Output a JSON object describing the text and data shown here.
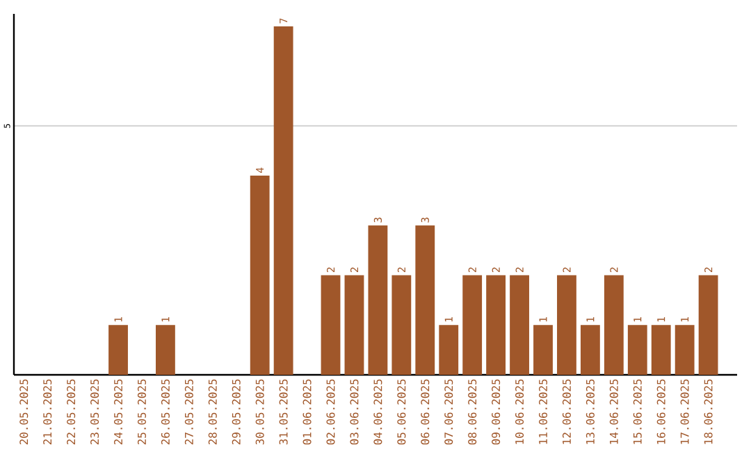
{
  "chart_data": {
    "type": "bar",
    "categories": [
      "20.05.2025",
      "21.05.2025",
      "22.05.2025",
      "23.05.2025",
      "24.05.2025",
      "25.05.2025",
      "26.05.2025",
      "27.05.2025",
      "28.05.2025",
      "29.05.2025",
      "30.05.2025",
      "31.05.2025",
      "01.06.2025",
      "02.06.2025",
      "03.06.2025",
      "04.06.2025",
      "05.06.2025",
      "06.06.2025",
      "07.06.2025",
      "08.06.2025",
      "09.06.2025",
      "10.06.2025",
      "11.06.2025",
      "12.06.2025",
      "13.06.2025",
      "14.06.2025",
      "15.06.2025",
      "16.06.2025",
      "17.06.2025",
      "18.06.2025"
    ],
    "values": [
      0,
      0,
      0,
      0,
      1,
      0,
      1,
      0,
      0,
      0,
      4,
      7,
      0,
      2,
      2,
      3,
      2,
      3,
      1,
      2,
      2,
      2,
      1,
      2,
      1,
      2,
      1,
      1,
      1,
      2
    ],
    "value_labels": [
      null,
      null,
      null,
      null,
      "1",
      null,
      "1",
      null,
      null,
      null,
      "4",
      "7",
      null,
      "2",
      "2",
      "3",
      "2",
      "3",
      "1",
      "2",
      "2",
      "2",
      "1",
      "2",
      "1",
      "2",
      "1",
      "1",
      "1",
      "2"
    ],
    "color": "#a0572a",
    "ylim": [
      0,
      7.25
    ],
    "yticks": [
      5
    ],
    "grid": "y"
  }
}
